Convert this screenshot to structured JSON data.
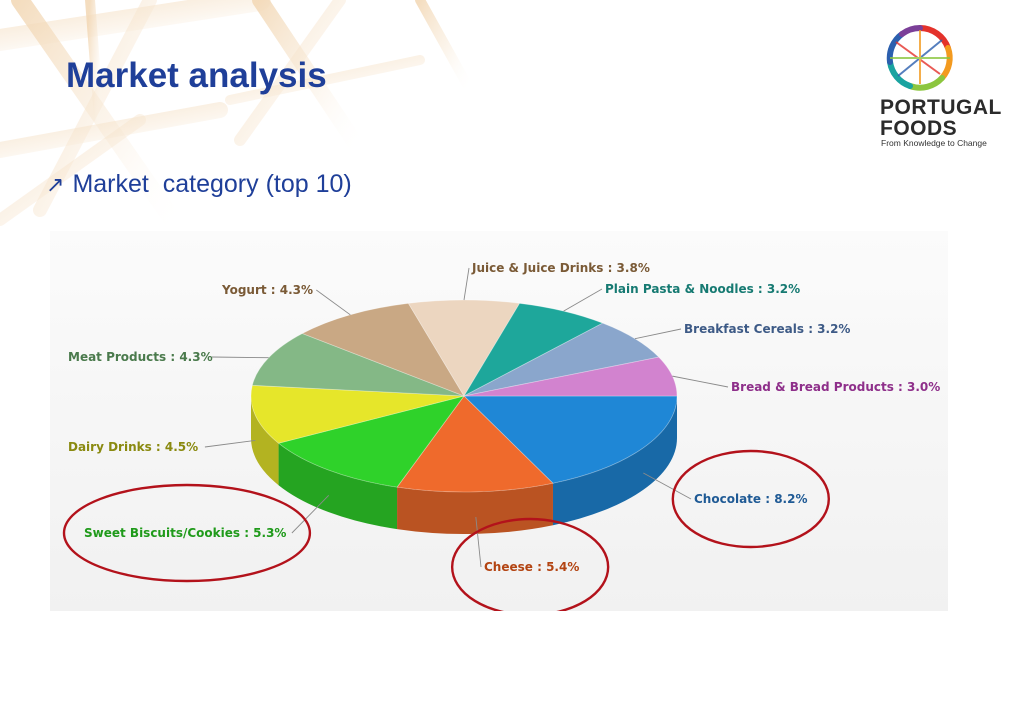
{
  "page": {
    "title": "Market analysis",
    "bullet": "Market  category (top 10)"
  },
  "logo": {
    "line1": "PORTUGAL",
    "line2": "FOODS",
    "tagline": "From Knowledge to Change"
  },
  "chart_data": {
    "type": "pie",
    "title": "",
    "slices": [
      {
        "label": "Chocolate",
        "value": 8.2,
        "color": "#1f87d6",
        "display": "Chocolate : 8.2%",
        "label_color": "#1f5a95"
      },
      {
        "label": "Cheese",
        "value": 5.4,
        "color": "#ef6a2c",
        "display": "Cheese : 5.4%",
        "label_color": "#b34412"
      },
      {
        "label": "Sweet Biscuits/Cookies",
        "value": 5.3,
        "color": "#2fd22a",
        "display": "Sweet Biscuits/Cookies : 5.3%",
        "label_color": "#1f9a1a"
      },
      {
        "label": "Dairy Drinks",
        "value": 4.5,
        "color": "#e6e62a",
        "display": "Dairy Drinks : 4.5%",
        "label_color": "#8a8a10"
      },
      {
        "label": "Meat Products",
        "value": 4.3,
        "color": "#84b886",
        "display": "Meat Products : 4.3%",
        "label_color": "#4a7a4c"
      },
      {
        "label": "Yogurt",
        "value": 4.3,
        "color": "#c9a884",
        "display": "Yogurt : 4.3%",
        "label_color": "#7a5a36"
      },
      {
        "label": "Juice & Juice Drinks",
        "value": 3.8,
        "color": "#ecd6c0",
        "display": "Juice & Juice Drinks : 3.8%",
        "label_color": "#7a5a36"
      },
      {
        "label": "Plain Pasta & Noodles",
        "value": 3.2,
        "color": "#1ea79b",
        "display": "Plain Pasta & Noodles : 3.2%",
        "label_color": "#167a72"
      },
      {
        "label": "Breakfast Cereals",
        "value": 3.2,
        "color": "#8aa6cc",
        "display": "Breakfast Cereals : 3.2%",
        "label_color": "#3d5a86"
      },
      {
        "label": "Bread & Bread Products",
        "value": 3.0,
        "color": "#d283cf",
        "display": "Bread & Bread Products : 3.0%",
        "label_color": "#8e2f8a"
      }
    ],
    "highlighted": [
      "Chocolate",
      "Cheese",
      "Sweet Biscuits/Cookies"
    ],
    "highlight_color": "#b3121b",
    "legend": "none",
    "style": "3d"
  }
}
